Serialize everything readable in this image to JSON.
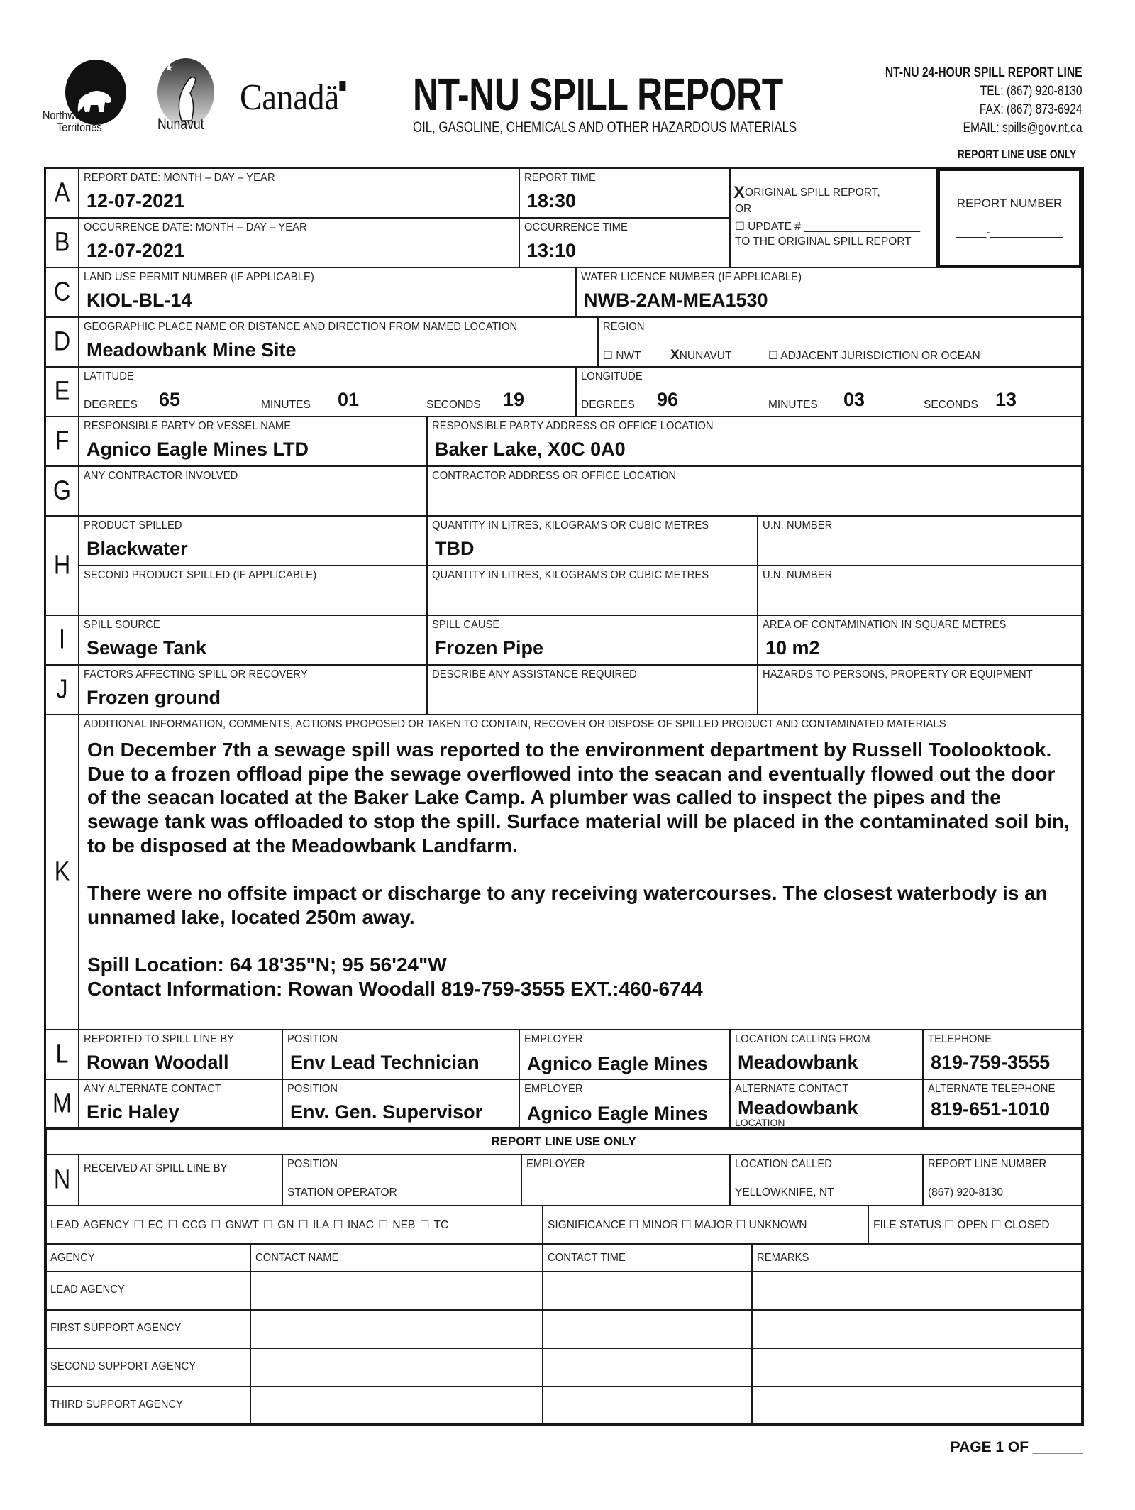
{
  "header": {
    "logos": {
      "nwt": "Northwest Territories",
      "nunavut": "Nunavut",
      "canada": "Canadä"
    },
    "title": "NT-NU SPILL REPORT",
    "subtitle": "OIL, GASOLINE, CHEMICALS AND OTHER HAZARDOUS MATERIALS",
    "hotline": {
      "title": "NT-NU 24-HOUR SPILL REPORT LINE",
      "tel": "TEL: (867) 920-8130",
      "fax": "FAX: (867) 873-6924",
      "email": "EMAIL: spills@gov.nt.ca"
    },
    "report_line_use_only": "REPORT LINE USE ONLY"
  },
  "rows": {
    "A": {
      "letter": "A",
      "date_label": "REPORT DATE: MONTH – DAY – YEAR",
      "date": "12-07-2021",
      "time_label": "REPORT TIME",
      "time": "18:30"
    },
    "B": {
      "letter": "B",
      "date_label": "OCCURRENCE DATE: MONTH – DAY – YEAR",
      "date": "12-07-2021",
      "time_label": "OCCURRENCE TIME",
      "time": "13:10"
    },
    "report_type": {
      "original_mark": "X",
      "original": "ORIGINAL SPILL REPORT,",
      "or": "OR",
      "update": "☐ UPDATE # ___________________",
      "update_suffix": "TO THE ORIGINAL SPILL REPORT"
    },
    "report_number": {
      "label": "REPORT NUMBER",
      "value": "_____-____________"
    },
    "C": {
      "letter": "C",
      "permit_label": "LAND USE PERMIT NUMBER (IF APPLICABLE)",
      "permit": "KIOL-BL-14",
      "licence_label": "WATER LICENCE NUMBER (IF APPLICABLE)",
      "licence": "NWB-2AM-MEA1530"
    },
    "D": {
      "letter": "D",
      "place_label": "GEOGRAPHIC PLACE NAME OR DISTANCE AND DIRECTION FROM NAMED LOCATION",
      "place": "Meadowbank Mine Site",
      "region_label": "REGION",
      "nwt": "☐ NWT",
      "nunavut_mark": "X",
      "nunavut": "NUNAVUT",
      "adjacent": "☐ ADJACENT JURISDICTION OR OCEAN"
    },
    "E": {
      "letter": "E",
      "lat_label": "LATITUDE",
      "long_label": "LONGITUDE",
      "degrees": "DEGREES",
      "minutes": "MINUTES",
      "seconds": "SECONDS",
      "lat": {
        "deg": "65",
        "min": "01",
        "sec": "19"
      },
      "long": {
        "deg": "96",
        "min": "03",
        "sec": "13"
      }
    },
    "F": {
      "letter": "F",
      "party_label": "RESPONSIBLE PARTY OR VESSEL NAME",
      "party": "Agnico Eagle Mines LTD",
      "address_label": "RESPONSIBLE PARTY ADDRESS OR OFFICE LOCATION",
      "address": "Baker Lake, X0C 0A0"
    },
    "G": {
      "letter": "G",
      "contractor_label": "ANY CONTRACTOR INVOLVED",
      "contractor_address_label": "CONTRACTOR ADDRESS OR OFFICE LOCATION"
    },
    "H": {
      "letter": "H",
      "product_label": "PRODUCT SPILLED",
      "product": "Blackwater",
      "qty_label": "QUANTITY IN LITRES, KILOGRAMS OR CUBIC METRES",
      "qty": "TBD",
      "un_label": "U.N. NUMBER",
      "product2_label": "SECOND PRODUCT SPILLED (IF APPLICABLE)",
      "qty2_label": "QUANTITY IN LITRES, KILOGRAMS OR CUBIC METRES",
      "un2_label": "U.N. NUMBER"
    },
    "I": {
      "letter": "I",
      "source_label": "SPILL SOURCE",
      "source": "Sewage Tank",
      "cause_label": "SPILL CAUSE",
      "cause": "Frozen Pipe",
      "area_label": "AREA OF CONTAMINATION IN SQUARE METRES",
      "area": "10 m2"
    },
    "J": {
      "letter": "J",
      "factors_label": "FACTORS AFFECTING SPILL OR RECOVERY",
      "factors": "Frozen ground",
      "assist_label": "DESCRIBE ANY ASSISTANCE REQUIRED",
      "hazards_label": "HAZARDS TO PERSONS, PROPERTY OR EQUIPMENT"
    },
    "K": {
      "letter": "K",
      "label": "ADDITIONAL INFORMATION, COMMENTS, ACTIONS PROPOSED OR TAKEN TO CONTAIN, RECOVER OR DISPOSE OF SPILLED PRODUCT AND CONTAMINATED MATERIALS",
      "para1": "On December 7th a sewage spill was reported to the environment department by Russell Toolooktook. Due to a frozen offload pipe the sewage overflowed into the seacan and eventually flowed out the door of the seacan located at the Baker Lake Camp. A plumber was called to inspect the pipes and the sewage tank was offloaded to stop the spill.  Surface material will be placed in the contaminated soil bin, to be disposed at the Meadowbank Landfarm.",
      "para2": "There were no offsite impact or discharge to any receiving watercourses. The closest waterbody is an unnamed lake, located 250m away.",
      "location": "Spill Location: 64 18'35\"N; 95 56'24\"W",
      "contact": "Contact Information: Rowan Woodall 819-759-3555 EXT.:460-6744"
    },
    "L": {
      "letter": "L",
      "by_label": "REPORTED TO SPILL LINE BY",
      "by": "Rowan Woodall",
      "position_label": "POSITION",
      "position": "Env Lead Technician",
      "employer_label": "EMPLOYER",
      "employer": "Agnico Eagle Mines",
      "location_label": "LOCATION CALLING FROM",
      "location": "Meadowbank",
      "tel_label": "TELEPHONE",
      "tel": "819-759-3555"
    },
    "M": {
      "letter": "M",
      "by_label": "ANY ALTERNATE CONTACT",
      "by": "Eric Haley",
      "position_label": "POSITION",
      "position": "Env. Gen. Supervisor",
      "employer_label": "EMPLOYER",
      "employer": "Agnico Eagle Mines",
      "location_label": "ALTERNATE CONTACT",
      "location_label2": "LOCATION",
      "location": "Meadowbank",
      "tel_label": "ALTERNATE TELEPHONE",
      "tel": "819-651-1010"
    }
  },
  "report_line": {
    "title": "REPORT LINE USE ONLY",
    "N": {
      "letter": "N",
      "received_label": "RECEIVED AT SPILL LINE BY",
      "position_label": "POSITION",
      "position": "STATION OPERATOR",
      "employer_label": "EMPLOYER",
      "location_label": "LOCATION CALLED",
      "location": "YELLOWKNIFE, NT",
      "number_label": "REPORT LINE NUMBER",
      "number": "(867) 920-8130"
    },
    "lead_agency": "LEAD AGENCY ☐ EC  ☐ CCG  ☐ GNWT  ☐ GN  ☐ ILA  ☐ INAC  ☐ NEB  ☐ TC",
    "significance": "SIGNIFICANCE ☐ MINOR ☐ MAJOR ☐ UNKNOWN",
    "file_status": "FILE STATUS ☐ OPEN ☐ CLOSED",
    "table": {
      "headers": [
        "AGENCY",
        "CONTACT NAME",
        "CONTACT TIME",
        "REMARKS"
      ],
      "rows": [
        "LEAD AGENCY",
        "FIRST SUPPORT AGENCY",
        "SECOND SUPPORT AGENCY",
        "THIRD SUPPORT AGENCY"
      ]
    }
  },
  "footer": {
    "page": "PAGE 1 OF ______"
  }
}
